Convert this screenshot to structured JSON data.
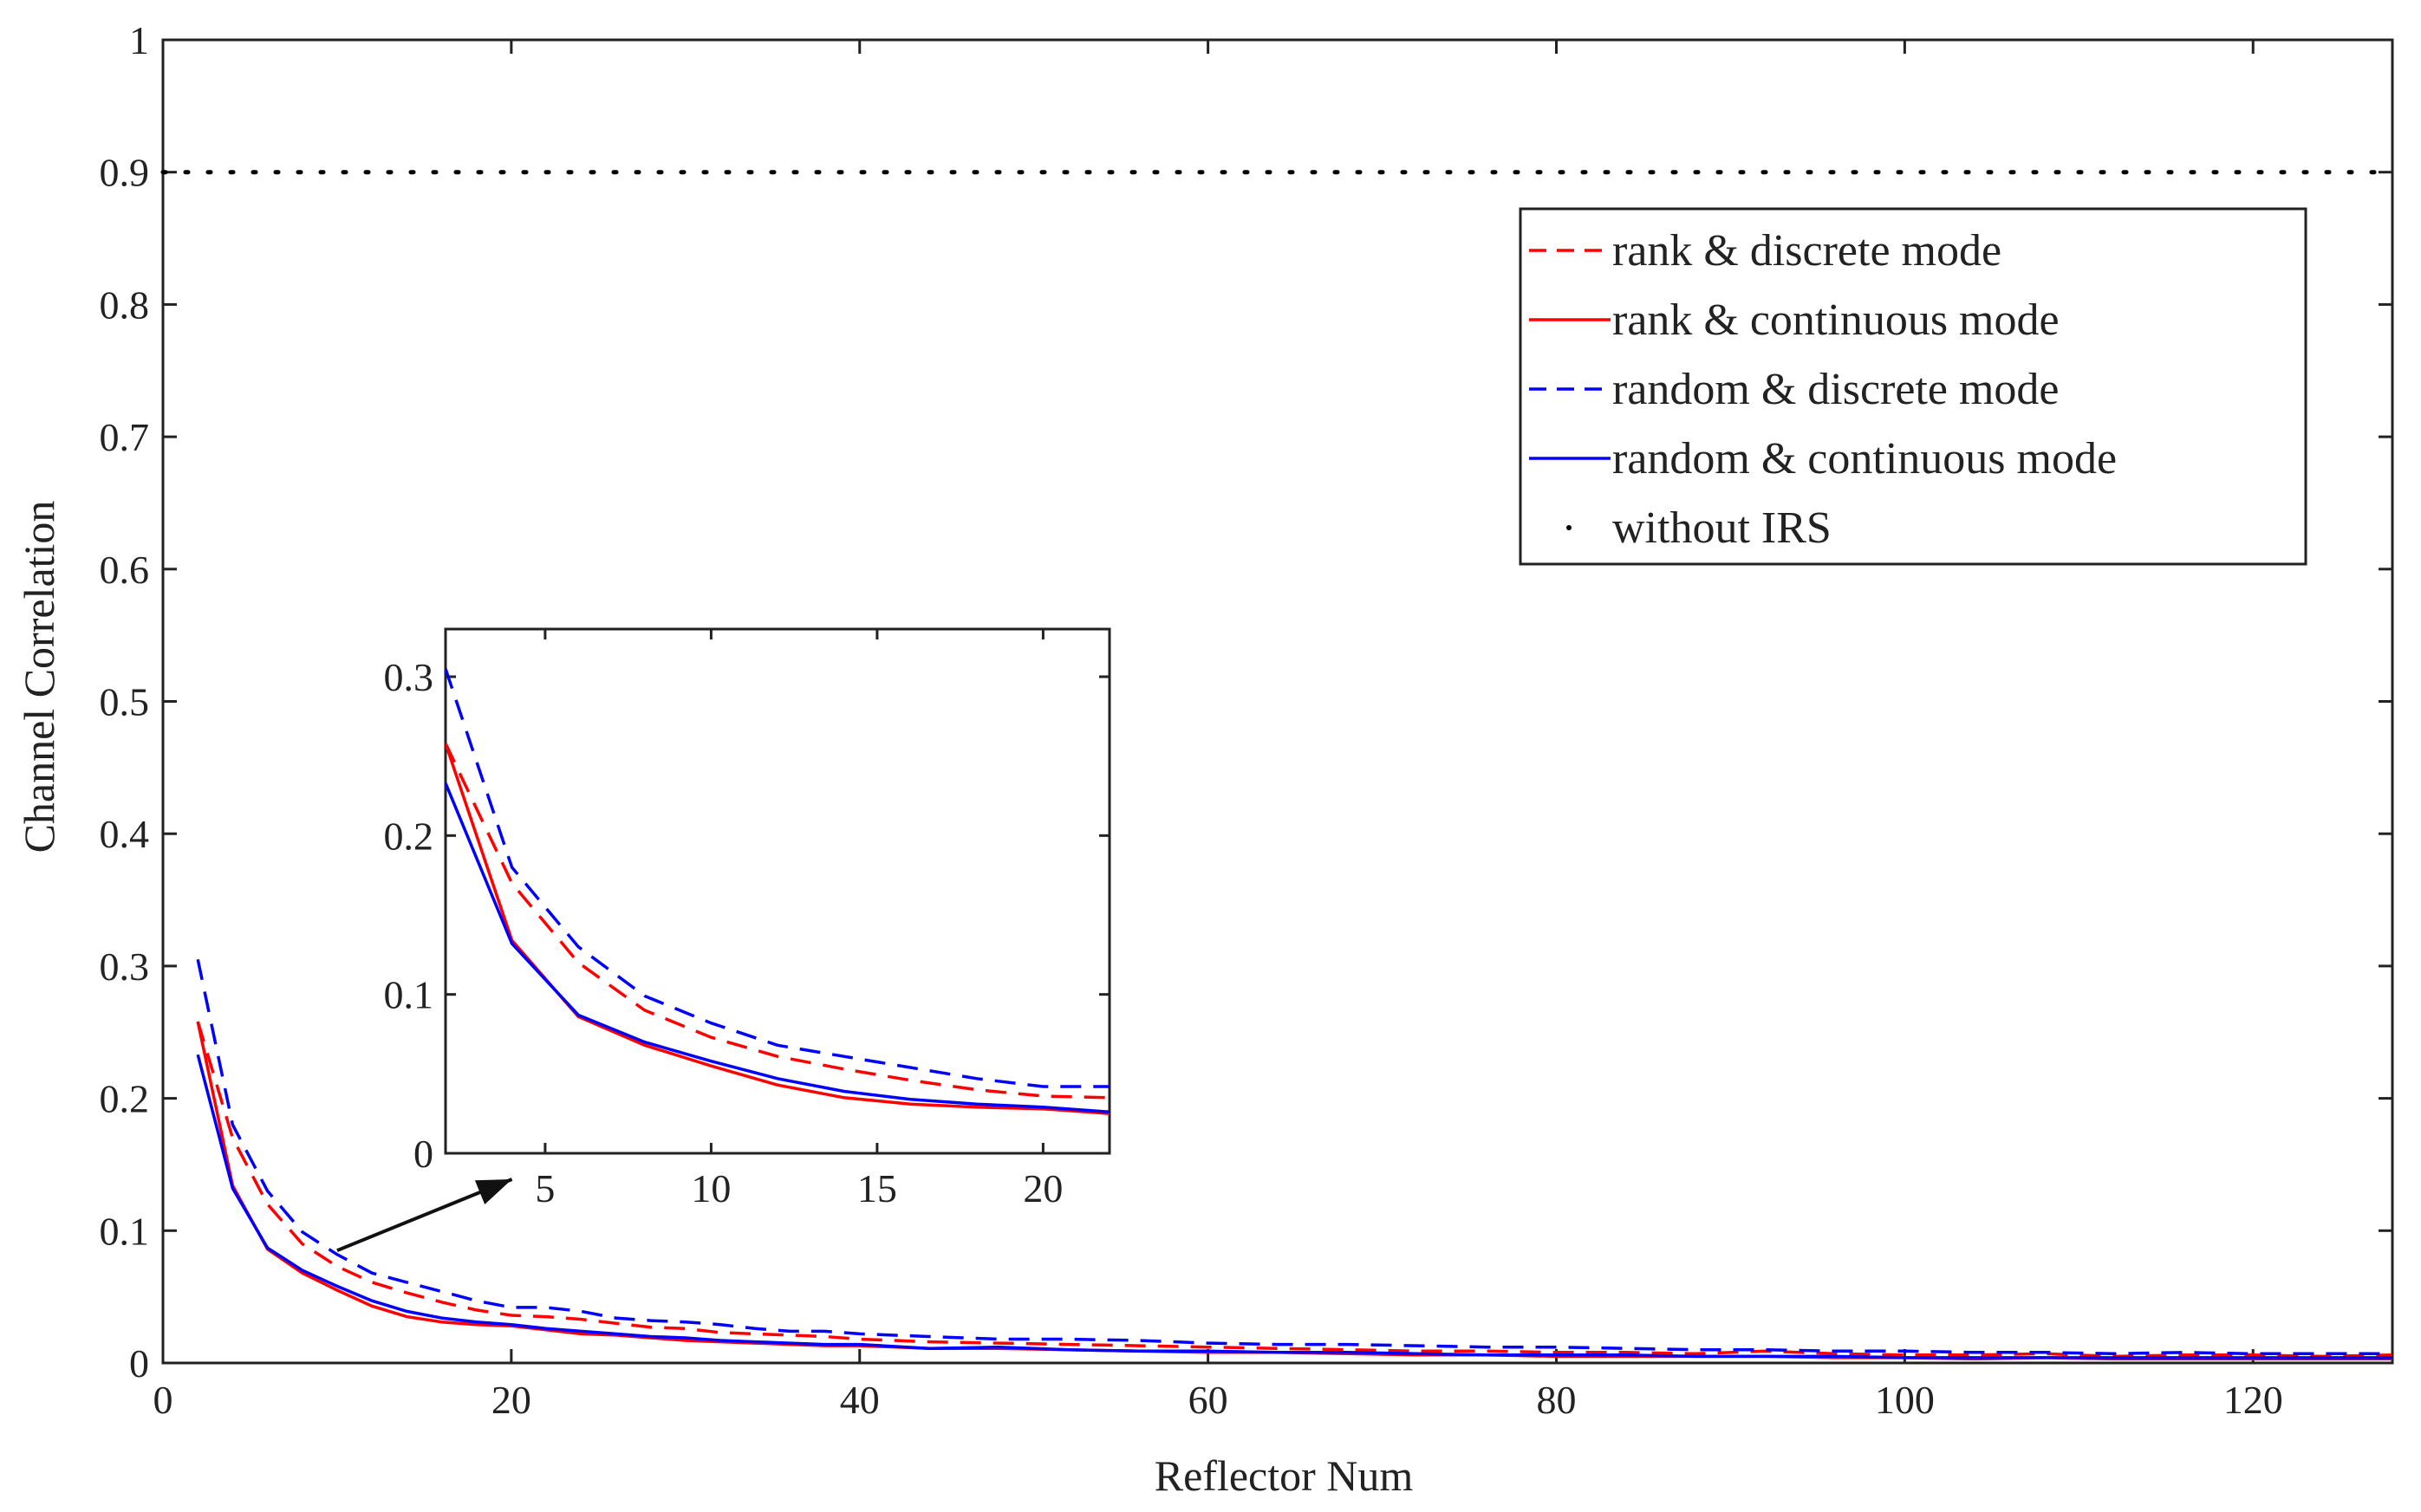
{
  "chart_data": {
    "type": "line",
    "xlabel": "Reflector Num",
    "ylabel": "Channel Correlation",
    "xlim": [
      0,
      128
    ],
    "ylim": [
      0,
      1
    ],
    "xticks": [
      "0",
      "20",
      "40",
      "60",
      "80",
      "100",
      "120"
    ],
    "yticks": [
      "0",
      "0.1",
      "0.2",
      "0.3",
      "0.4",
      "0.5",
      "0.6",
      "0.7",
      "0.8",
      "0.9",
      "1"
    ],
    "legend_position": "top-right",
    "series": [
      {
        "name": "rank & discrete mode",
        "color": "#ff0000",
        "style": "dashed",
        "x": [
          2,
          4,
          6,
          8,
          10,
          12,
          14,
          16,
          18,
          20,
          22,
          24,
          26,
          28,
          30,
          32,
          34,
          36,
          38,
          40,
          44,
          48,
          52,
          56,
          60,
          64,
          68,
          72,
          76,
          80,
          84,
          88,
          92,
          96,
          100,
          104,
          108,
          112,
          116,
          120,
          124,
          128
        ],
        "y": [
          0.258,
          0.17,
          0.12,
          0.09,
          0.073,
          0.061,
          0.053,
          0.046,
          0.04,
          0.036,
          0.035,
          0.033,
          0.03,
          0.027,
          0.026,
          0.023,
          0.022,
          0.021,
          0.02,
          0.018,
          0.016,
          0.015,
          0.014,
          0.013,
          0.012,
          0.011,
          0.01,
          0.009,
          0.009,
          0.008,
          0.008,
          0.007,
          0.009,
          0.007,
          0.006,
          0.006,
          0.007,
          0.005,
          0.006,
          0.006,
          0.005,
          0.006
        ]
      },
      {
        "name": "rank & continuous mode",
        "color": "#ff0000",
        "style": "solid",
        "x": [
          2,
          4,
          6,
          8,
          10,
          12,
          14,
          16,
          18,
          20,
          22,
          24,
          26,
          28,
          30,
          32,
          34,
          36,
          38,
          40,
          44,
          48,
          52,
          56,
          60,
          64,
          68,
          72,
          76,
          80,
          84,
          88,
          92,
          96,
          100,
          104,
          108,
          112,
          116,
          120,
          124,
          128
        ],
        "y": [
          0.258,
          0.134,
          0.086,
          0.068,
          0.055,
          0.043,
          0.035,
          0.031,
          0.029,
          0.028,
          0.025,
          0.022,
          0.021,
          0.019,
          0.017,
          0.016,
          0.015,
          0.014,
          0.013,
          0.013,
          0.011,
          0.011,
          0.01,
          0.009,
          0.008,
          0.008,
          0.007,
          0.006,
          0.006,
          0.005,
          0.005,
          0.005,
          0.005,
          0.004,
          0.004,
          0.003,
          0.004,
          0.003,
          0.003,
          0.003,
          0.003,
          0.003
        ]
      },
      {
        "name": "random & discrete mode",
        "color": "#0000ff",
        "style": "dashed",
        "x": [
          2,
          4,
          6,
          8,
          10,
          12,
          14,
          16,
          18,
          20,
          22,
          24,
          26,
          28,
          30,
          32,
          34,
          36,
          38,
          40,
          44,
          48,
          52,
          56,
          60,
          64,
          68,
          72,
          76,
          80,
          84,
          88,
          92,
          96,
          100,
          104,
          108,
          112,
          116,
          120,
          124,
          128
        ],
        "y": [
          0.305,
          0.18,
          0.13,
          0.099,
          0.082,
          0.068,
          0.061,
          0.054,
          0.047,
          0.042,
          0.042,
          0.039,
          0.034,
          0.032,
          0.031,
          0.029,
          0.026,
          0.024,
          0.024,
          0.022,
          0.02,
          0.018,
          0.018,
          0.017,
          0.015,
          0.014,
          0.014,
          0.013,
          0.012,
          0.012,
          0.011,
          0.01,
          0.01,
          0.009,
          0.009,
          0.008,
          0.008,
          0.007,
          0.008,
          0.007,
          0.007,
          0.007
        ]
      },
      {
        "name": "random & continuous mode",
        "color": "#0000ff",
        "style": "solid",
        "x": [
          2,
          4,
          6,
          8,
          10,
          12,
          14,
          16,
          18,
          20,
          22,
          24,
          26,
          28,
          30,
          32,
          34,
          36,
          38,
          40,
          44,
          48,
          52,
          56,
          60,
          64,
          68,
          72,
          76,
          80,
          84,
          88,
          92,
          96,
          100,
          104,
          108,
          112,
          116,
          120,
          124,
          128
        ],
        "y": [
          0.233,
          0.132,
          0.087,
          0.07,
          0.058,
          0.047,
          0.039,
          0.034,
          0.031,
          0.029,
          0.026,
          0.024,
          0.022,
          0.02,
          0.019,
          0.017,
          0.016,
          0.015,
          0.014,
          0.014,
          0.011,
          0.012,
          0.01,
          0.009,
          0.009,
          0.008,
          0.008,
          0.007,
          0.006,
          0.006,
          0.006,
          0.005,
          0.005,
          0.005,
          0.004,
          0.004,
          0.004,
          0.004,
          0.004,
          0.004,
          0.004,
          0.004
        ]
      },
      {
        "name": "without IRS",
        "color": "#000000",
        "style": "dotted",
        "x": [
          0,
          128
        ],
        "y": [
          0.9,
          0.9
        ]
      }
    ],
    "inset": {
      "xlim": [
        2,
        22
      ],
      "ylim": [
        0,
        0.33
      ],
      "xticks": [
        "5",
        "10",
        "15",
        "20"
      ],
      "yticks": [
        "0",
        "0.1",
        "0.2",
        "0.3"
      ],
      "arrow": {
        "from": [
          10,
          0.085
        ],
        "to": [
          4,
          0.0
        ]
      }
    }
  }
}
